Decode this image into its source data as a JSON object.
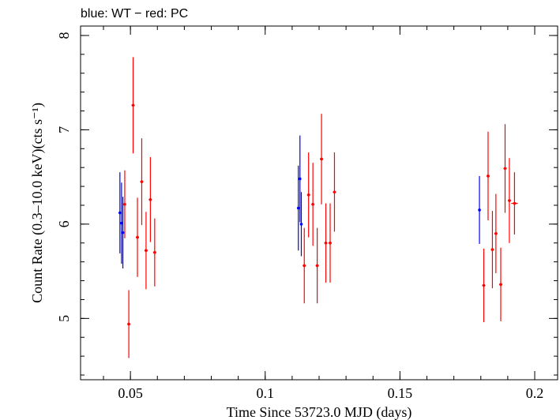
{
  "chart_data": {
    "type": "scatter",
    "title": "blue: WT − red: PC",
    "xlabel": "Time Since 53723.0 MJD (days)",
    "ylabel": "Count Rate (0.3–10.0 keV)(cts s⁻¹)",
    "xlim": [
      0.0315,
      0.2085
    ],
    "ylim": [
      4.35,
      8.1
    ],
    "x_ticks": [
      {
        "value": 0.05,
        "label": "0.05"
      },
      {
        "value": 0.1,
        "label": "0.1"
      },
      {
        "value": 0.15,
        "label": "0.15"
      },
      {
        "value": 0.2,
        "label": "0.2"
      }
    ],
    "y_ticks": [
      {
        "value": 5,
        "label": "5"
      },
      {
        "value": 6,
        "label": "6"
      },
      {
        "value": 7,
        "label": "7"
      },
      {
        "value": 8,
        "label": "8"
      }
    ],
    "x_minor_step": 0.01,
    "y_minor_step": 0.2,
    "grid": false,
    "series": [
      {
        "color": "#0000ff",
        "points": [
          {
            "x": 0.0461,
            "y": 6.12,
            "xerr": 0.0003,
            "yerr": 0.43
          },
          {
            "x": 0.0467,
            "y": 6.01,
            "xerr": 0.0003,
            "yerr": 0.43
          },
          {
            "x": 0.0472,
            "y": 5.91,
            "xerr": 0.0003,
            "yerr": 0.38
          },
          {
            "x": 0.1123,
            "y": 6.17,
            "xerr": 0.0003,
            "yerr": 0.45
          },
          {
            "x": 0.1129,
            "y": 6.48,
            "xerr": 0.0003,
            "yerr": 0.46
          },
          {
            "x": 0.1134,
            "y": 6.0,
            "xerr": 0.0003,
            "yerr": 0.34
          },
          {
            "x": 0.1795,
            "y": 6.15,
            "xerr": 0.0003,
            "yerr": 0.36
          }
        ]
      },
      {
        "color": "#ff0000",
        "points": [
          {
            "x": 0.0479,
            "y": 6.21,
            "xerr": 0.0004,
            "yerr": 0.36
          },
          {
            "x": 0.0494,
            "y": 4.94,
            "xerr": 0.0006,
            "yerr": 0.36
          },
          {
            "x": 0.051,
            "y": 7.26,
            "xerr": 0.0006,
            "yerr": 0.51
          },
          {
            "x": 0.0526,
            "y": 5.86,
            "xerr": 0.0006,
            "yerr": 0.42
          },
          {
            "x": 0.0542,
            "y": 6.45,
            "xerr": 0.0006,
            "yerr": 0.46
          },
          {
            "x": 0.0558,
            "y": 5.72,
            "xerr": 0.0006,
            "yerr": 0.41
          },
          {
            "x": 0.0574,
            "y": 6.26,
            "xerr": 0.0006,
            "yerr": 0.45
          },
          {
            "x": 0.059,
            "y": 5.7,
            "xerr": 0.0006,
            "yerr": 0.36
          },
          {
            "x": 0.1145,
            "y": 5.56,
            "xerr": 0.0006,
            "yerr": 0.4
          },
          {
            "x": 0.1161,
            "y": 6.31,
            "xerr": 0.0006,
            "yerr": 0.45
          },
          {
            "x": 0.1177,
            "y": 6.21,
            "xerr": 0.0006,
            "yerr": 0.44
          },
          {
            "x": 0.1193,
            "y": 5.56,
            "xerr": 0.0006,
            "yerr": 0.4
          },
          {
            "x": 0.1209,
            "y": 6.69,
            "xerr": 0.0006,
            "yerr": 0.48
          },
          {
            "x": 0.1225,
            "y": 5.8,
            "xerr": 0.0006,
            "yerr": 0.42
          },
          {
            "x": 0.1241,
            "y": 5.8,
            "xerr": 0.0006,
            "yerr": 0.42
          },
          {
            "x": 0.1257,
            "y": 6.34,
            "xerr": 0.0006,
            "yerr": 0.42
          },
          {
            "x": 0.1811,
            "y": 5.35,
            "xerr": 0.0006,
            "yerr": 0.39
          },
          {
            "x": 0.1827,
            "y": 6.51,
            "xerr": 0.0006,
            "yerr": 0.47
          },
          {
            "x": 0.1843,
            "y": 5.73,
            "xerr": 0.0006,
            "yerr": 0.41
          },
          {
            "x": 0.1856,
            "y": 5.9,
            "xerr": 0.0006,
            "yerr": 0.42
          },
          {
            "x": 0.1874,
            "y": 5.36,
            "xerr": 0.0006,
            "yerr": 0.39
          },
          {
            "x": 0.189,
            "y": 6.59,
            "xerr": 0.0006,
            "yerr": 0.47
          },
          {
            "x": 0.1906,
            "y": 6.25,
            "xerr": 0.0006,
            "yerr": 0.45
          },
          {
            "x": 0.1925,
            "y": 6.22,
            "xerr": 0.0012,
            "yerr": 0.33
          }
        ]
      }
    ]
  }
}
